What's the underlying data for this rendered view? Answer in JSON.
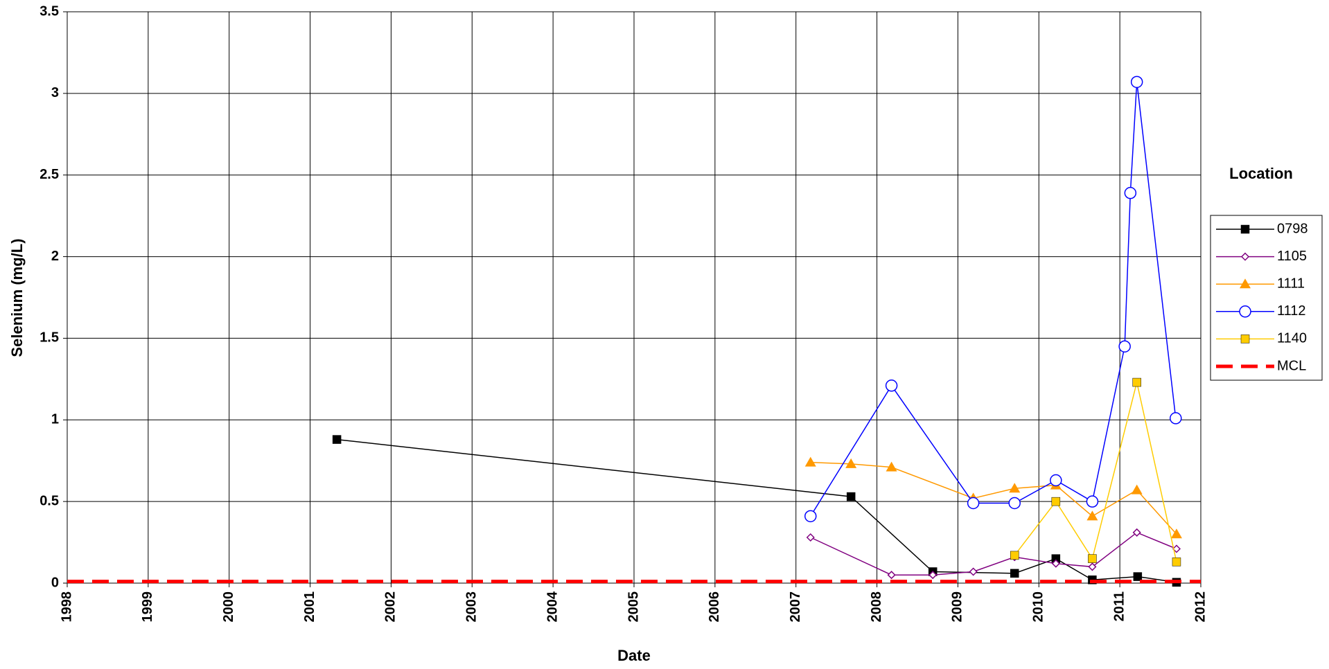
{
  "chart_data": {
    "type": "line",
    "x_label": "Date",
    "y_label": "Selenium (mg/L)",
    "legend_title": "Location",
    "xlim": [
      1998,
      2012
    ],
    "xticks": [
      1998,
      1999,
      2000,
      2001,
      2002,
      2003,
      2004,
      2005,
      2006,
      2007,
      2008,
      2009,
      2010,
      2011,
      2012
    ],
    "ylim": [
      0,
      3.5
    ],
    "yticks": [
      0,
      0.5,
      1,
      1.5,
      2,
      2.5,
      3,
      3.5
    ],
    "grid": true,
    "legend": "right",
    "series": [
      {
        "name": "0798",
        "color": "#000000",
        "marker": "square",
        "x": [
          2001.33,
          2007.68,
          2008.69,
          2009.7,
          2010.21,
          2010.66,
          2011.22,
          2011.7
        ],
        "values": [
          0.88,
          0.53,
          0.07,
          0.06,
          0.15,
          0.02,
          0.04,
          0.005
        ]
      },
      {
        "name": "1105",
        "color": "#800080",
        "marker": "diamond-open",
        "x": [
          2007.18,
          2008.18,
          2008.69,
          2009.19,
          2009.7,
          2010.21,
          2010.66,
          2011.21,
          2011.7
        ],
        "values": [
          0.28,
          0.05,
          0.05,
          0.07,
          0.16,
          0.12,
          0.1,
          0.31,
          0.21
        ]
      },
      {
        "name": "1111",
        "color": "#ff9900",
        "marker": "triangle",
        "x": [
          2007.18,
          2007.68,
          2008.18,
          2009.19,
          2009.7,
          2010.21,
          2010.66,
          2011.21,
          2011.7
        ],
        "values": [
          0.74,
          0.73,
          0.71,
          0.52,
          0.58,
          0.6,
          0.41,
          0.57,
          0.3
        ]
      },
      {
        "name": "1112",
        "color": "#0000ff",
        "marker": "circle-open",
        "x": [
          2007.18,
          2008.18,
          2009.19,
          2009.7,
          2010.21,
          2010.66,
          2011.06,
          2011.13,
          2011.21,
          2011.69
        ],
        "values": [
          0.41,
          1.21,
          0.49,
          0.49,
          0.63,
          0.5,
          1.45,
          2.39,
          3.07,
          1.01
        ]
      },
      {
        "name": "1140",
        "color": "#ffcc00",
        "marker": "square",
        "x": [
          2009.7,
          2010.21,
          2010.66,
          2011.21,
          2011.7
        ],
        "values": [
          0.17,
          0.5,
          0.15,
          1.23,
          0.13
        ]
      },
      {
        "name": "MCL",
        "color": "#ff0000",
        "marker": "none",
        "dashed": true,
        "x": [
          1998,
          2012
        ],
        "values": [
          0.01,
          0.01
        ]
      }
    ]
  }
}
